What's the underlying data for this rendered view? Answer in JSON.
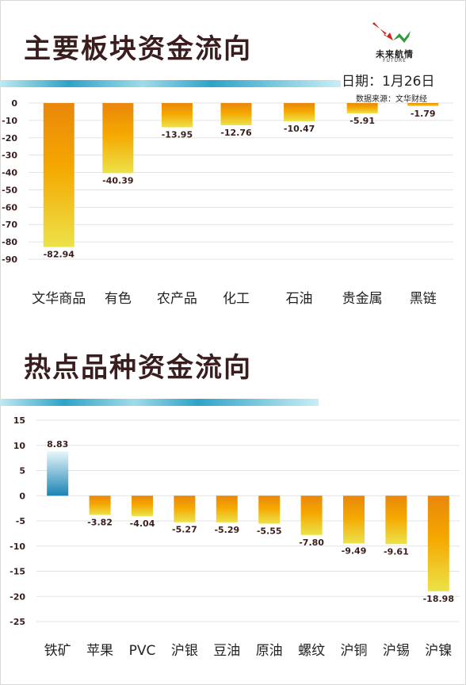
{
  "page": {
    "title_1": "主要板块资金流向",
    "title_2": "热点品种资金流向",
    "date": "日期：1月26日",
    "source": "数据来源：文华财经",
    "logo": {
      "name": "未来航情",
      "sub": "FUTURE"
    },
    "colors": {
      "negative_top": "#e9870b",
      "negative_mid": "#f5a800",
      "negative_bottom": "#ece24a",
      "positive_top": "#e8f7fb",
      "positive_bottom": "#1b83b4",
      "grid": "#e3e3e3",
      "deco_bar": "#2ea3c7",
      "logo_red": "#d8231c",
      "logo_green": "#2f9a3c"
    }
  },
  "chart_data": [
    {
      "type": "bar",
      "title": "主要板块资金流向",
      "categories": [
        "文华商品",
        "有色",
        "农产品",
        "化工",
        "石油",
        "贵金属",
        "黑链"
      ],
      "values": [
        -82.94,
        -40.39,
        -13.95,
        -12.76,
        -10.47,
        -5.91,
        -1.79
      ],
      "value_labels": [
        "-82.94",
        "-40.39",
        "-13.95",
        "-12.76",
        "-10.47",
        "-5.91",
        "-1.79"
      ],
      "yticks": [
        0,
        -10,
        -20,
        -30,
        -40,
        -50,
        -60,
        -70,
        -80,
        -90
      ],
      "ytick_labels": [
        "0",
        "-10",
        "-20",
        "-30",
        "-40",
        "-50",
        "-60",
        "-70",
        "-80",
        "-90"
      ],
      "ylim": [
        -90,
        0
      ],
      "grid": true,
      "legend": "none"
    },
    {
      "type": "bar",
      "title": "热点品种资金流向",
      "categories": [
        "铁矿",
        "苹果",
        "PVC",
        "沪银",
        "豆油",
        "原油",
        "螺纹",
        "沪铜",
        "沪锡",
        "沪镍"
      ],
      "values": [
        8.83,
        -3.82,
        -4.04,
        -5.27,
        -5.29,
        -5.55,
        -7.8,
        -9.49,
        -9.61,
        -18.98
      ],
      "value_labels": [
        "8.83",
        "-3.82",
        "-4.04",
        "-5.27",
        "-5.29",
        "-5.55",
        "-7.80",
        "-9.49",
        "-9.61",
        "-18.98"
      ],
      "yticks": [
        15,
        10,
        5,
        0,
        -5,
        -10,
        -15,
        -20,
        -25
      ],
      "ytick_labels": [
        "15",
        "10",
        "5",
        "0",
        "-5",
        "-10",
        "-15",
        "-20",
        "-25"
      ],
      "ylim": [
        -25,
        15
      ],
      "grid": true,
      "legend": "none"
    }
  ]
}
